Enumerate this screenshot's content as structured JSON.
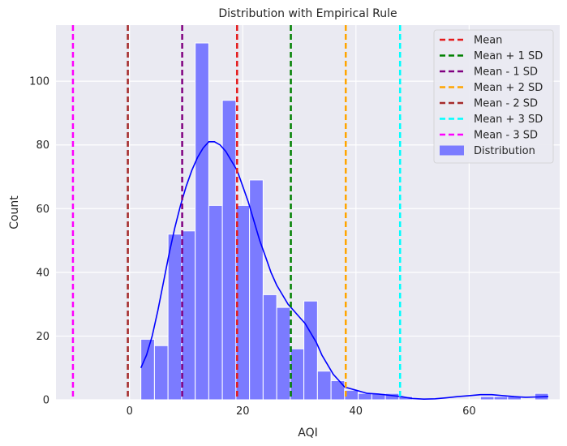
{
  "chart_data": {
    "type": "histogram",
    "title": "Distribution with Empirical Rule",
    "xlabel": "AQI",
    "ylabel": "Count",
    "xlim": [
      -13,
      76
    ],
    "ylim": [
      0,
      117.6
    ],
    "xticks": [
      0,
      20,
      40,
      60
    ],
    "yticks": [
      0,
      20,
      40,
      60,
      80,
      100
    ],
    "grid": true,
    "legend_position": "top-right",
    "bin_start": 2,
    "bin_width": 2.4,
    "counts": [
      19,
      17,
      52,
      53,
      112,
      61,
      94,
      61,
      69,
      33,
      29,
      16,
      31,
      9,
      6,
      3,
      2,
      2,
      2,
      1,
      0,
      0,
      0,
      0,
      0,
      1,
      1,
      1,
      0,
      2
    ],
    "series": [
      {
        "name": "Mean",
        "x": 19,
        "color": "#e41a1c",
        "legend_text": "Mean"
      },
      {
        "name": "Mean + 1 SD",
        "x": 28.5,
        "color": "#008000",
        "legend_text": "Mean + 1 SD"
      },
      {
        "name": "Mean - 1 SD",
        "x": 9.3,
        "color": "#800080",
        "legend_text": "Mean - 1 SD"
      },
      {
        "name": "Mean + 2 SD",
        "x": 38.2,
        "color": "#ffa500",
        "legend_text": "Mean + 2 SD"
      },
      {
        "name": "Mean - 2 SD",
        "x": -0.3,
        "color": "#a52a2a",
        "legend_text": "Mean - 2 SD"
      },
      {
        "name": "Mean + 3 SD",
        "x": 47.8,
        "color": "#00ffff",
        "legend_text": "Mean + 3 SD"
      },
      {
        "name": "Mean - 3 SD",
        "x": -10,
        "color": "#ff00ff",
        "legend_text": "Mean - 3 SD"
      }
    ],
    "distribution_label": "Distribution",
    "bar_color": "#7b7bff",
    "kde_color": "#0000ff",
    "kde": {
      "x": [
        2,
        3,
        4,
        5,
        6,
        7,
        8,
        9,
        10,
        11,
        12,
        13,
        14,
        15,
        16,
        17,
        18,
        19,
        20,
        21,
        22,
        23,
        24,
        25,
        26,
        27,
        28,
        29,
        30,
        31,
        32,
        33,
        34,
        35,
        36,
        37,
        38,
        40,
        42,
        44,
        46,
        48,
        50,
        52,
        54,
        56,
        58,
        60,
        62,
        64,
        66,
        68,
        70,
        72,
        74
      ],
      "y": [
        10,
        14,
        20,
        28,
        37,
        46,
        54,
        61,
        67,
        72,
        76,
        79,
        81,
        81,
        80,
        78,
        75,
        72,
        67,
        62,
        56,
        50,
        45,
        40,
        36,
        33,
        30,
        28,
        26,
        24,
        21,
        18,
        14,
        11,
        8,
        6,
        4,
        3,
        2,
        1.8,
        1.4,
        1,
        0.4,
        0.2,
        0.3,
        0.6,
        1,
        1.3,
        1.6,
        1.6,
        1.3,
        1,
        0.8,
        0.9,
        1
      ]
    }
  }
}
